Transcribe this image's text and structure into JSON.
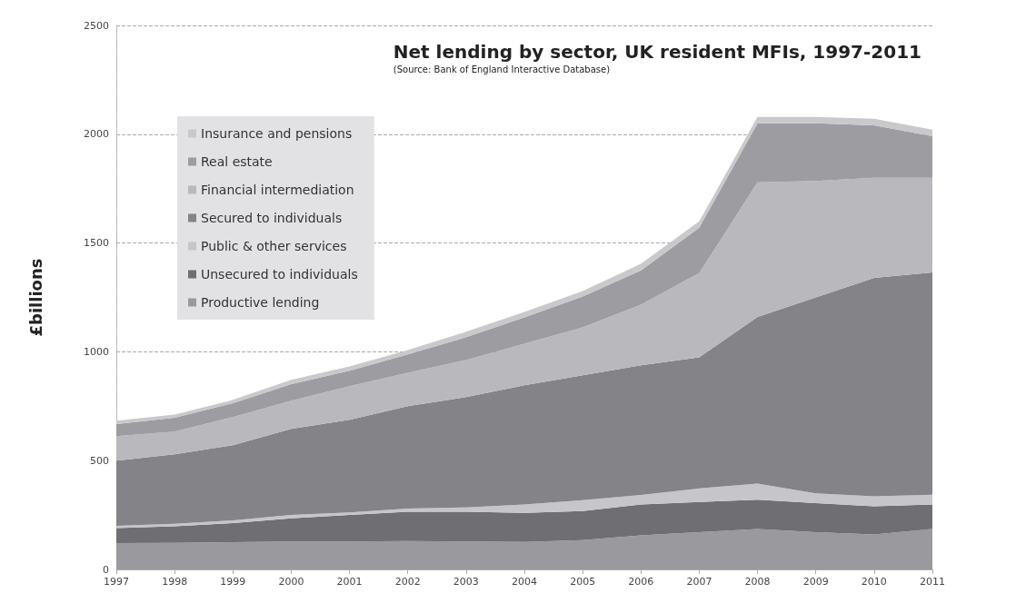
{
  "chart_data": {
    "type": "area",
    "title": "Net lending by sector, UK resident MFIs, 1997-2011",
    "subtitle": "(Source: Bank of England Interactive Database)",
    "ylabel": "£billions",
    "categories": [
      "1997",
      "1998",
      "1999",
      "2000",
      "2001",
      "2002",
      "2003",
      "2004",
      "2005",
      "2006",
      "2007",
      "2008",
      "2009",
      "2010",
      "2011"
    ],
    "stacked": true,
    "ylim": [
      0,
      2500
    ],
    "yticks": [
      0,
      500,
      1000,
      1500,
      2000,
      2500
    ],
    "grid": "y",
    "legend": "top left",
    "marker": "none",
    "series": [
      {
        "name": "Productive lending",
        "color": "#9a9a9e",
        "values": [
          121,
          122,
          125,
          128,
          128,
          130,
          128,
          126,
          135,
          156,
          171,
          186,
          171,
          161,
          186
        ]
      },
      {
        "name": "Unsecured to individuals",
        "color": "#6f6f73",
        "values": [
          69,
          76,
          88,
          107,
          122,
          135,
          137,
          134,
          133,
          142,
          139,
          134,
          134,
          129,
          112
        ]
      },
      {
        "name": "Public & other services",
        "color": "#c6c6ca",
        "values": [
          10,
          12,
          12,
          15,
          12,
          15,
          20,
          38,
          50,
          44,
          62,
          74,
          45,
          46,
          45
        ]
      },
      {
        "name": "Secured to individuals",
        "color": "#838388",
        "values": [
          300,
          319,
          346,
          396,
          426,
          470,
          507,
          548,
          574,
          596,
          603,
          766,
          900,
          1004,
          1022
        ]
      },
      {
        "name": "Financial intermediation",
        "color": "#b9b9bd",
        "values": [
          112,
          104,
          129,
          129,
          154,
          154,
          170,
          191,
          220,
          279,
          387,
          619,
          535,
          460,
          435
        ]
      },
      {
        "name": "Real estate",
        "color": "#9d9da1",
        "values": [
          56,
          64,
          64,
          76,
          71,
          84,
          105,
          121,
          142,
          157,
          208,
          271,
          265,
          241,
          191
        ]
      },
      {
        "name": "Insurance and pensions",
        "color": "#c9c9cc",
        "values": [
          15,
          15,
          15,
          20,
          20,
          20,
          25,
          25,
          25,
          30,
          30,
          30,
          30,
          30,
          30
        ]
      }
    ]
  }
}
